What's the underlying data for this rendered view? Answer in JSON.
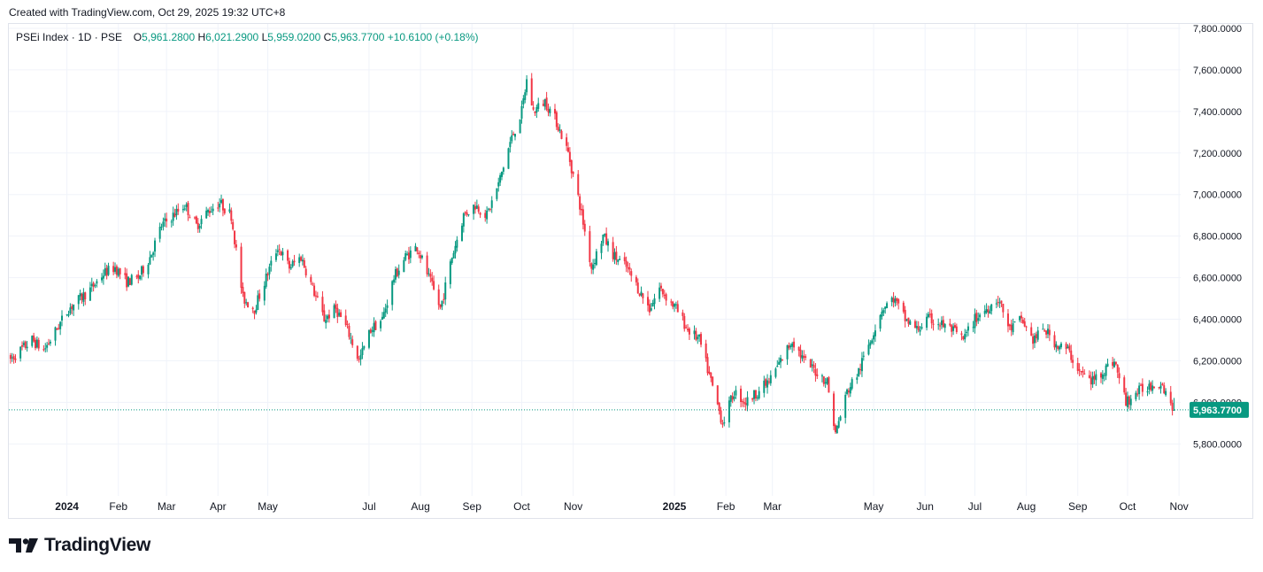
{
  "header": {
    "created_text": "Created with TradingView.com, Oct 29, 2025 19:32 UTC+8"
  },
  "legend": {
    "symbol": "PSEi Index · 1D · PSE",
    "open_label": "O",
    "open": "5,961.2800",
    "high_label": "H",
    "high": "6,021.2900",
    "low_label": "L",
    "low": "5,959.0200",
    "close_label": "C",
    "close": "5,963.7700",
    "change": "+10.6100 (+0.18%)"
  },
  "last_price_label": "5,963.7700",
  "brand": {
    "name": "TradingView"
  },
  "colors": {
    "up": "#089981",
    "down": "#f23645",
    "grid": "#f0f3fa",
    "axis_text": "#131722",
    "last_line": "#089981"
  },
  "chart_data": {
    "type": "candlestick",
    "title": "PSEi Index · 1D · PSE",
    "xlabel": "",
    "ylabel": "",
    "ylim": [
      5550,
      7800
    ],
    "y_ticks": [
      "7,800.0000",
      "7,600.0000",
      "7,400.0000",
      "7,200.0000",
      "7,000.0000",
      "6,800.0000",
      "6,600.0000",
      "6,400.0000",
      "6,200.0000",
      "6,000.0000",
      "5,800.0000"
    ],
    "y_tick_values": [
      7800,
      7600,
      7400,
      7200,
      7000,
      6800,
      6600,
      6400,
      6200,
      6000,
      5800
    ],
    "x_labels": [
      {
        "label": "2024",
        "date": "2024-01",
        "bold": true
      },
      {
        "label": "Feb",
        "date": "2024-02",
        "bold": false
      },
      {
        "label": "Mar",
        "date": "2024-03",
        "bold": false
      },
      {
        "label": "Apr",
        "date": "2024-04",
        "bold": false
      },
      {
        "label": "May",
        "date": "2024-05",
        "bold": false
      },
      {
        "label": "Jul",
        "date": "2024-07",
        "bold": false
      },
      {
        "label": "Aug",
        "date": "2024-08",
        "bold": false
      },
      {
        "label": "Sep",
        "date": "2024-09",
        "bold": false
      },
      {
        "label": "Oct",
        "date": "2024-10",
        "bold": false
      },
      {
        "label": "Nov",
        "date": "2024-11",
        "bold": false
      },
      {
        "label": "2025",
        "date": "2025-01",
        "bold": true
      },
      {
        "label": "Feb",
        "date": "2025-02",
        "bold": false
      },
      {
        "label": "Mar",
        "date": "2025-03",
        "bold": false
      },
      {
        "label": "May",
        "date": "2025-05",
        "bold": false
      },
      {
        "label": "Jun",
        "date": "2025-06",
        "bold": false
      },
      {
        "label": "Jul",
        "date": "2025-07",
        "bold": false
      },
      {
        "label": "Aug",
        "date": "2025-08",
        "bold": false
      },
      {
        "label": "Sep",
        "date": "2025-09",
        "bold": false
      },
      {
        "label": "Oct",
        "date": "2025-10",
        "bold": false
      },
      {
        "label": "Nov",
        "date": "2025-11",
        "bold": false
      }
    ],
    "last_price": 5963.77,
    "close_path": [
      [
        "2023-11-27",
        6200
      ],
      [
        "2023-12-04",
        6250
      ],
      [
        "2023-12-11",
        6300
      ],
      [
        "2023-12-18",
        6250
      ],
      [
        "2023-12-22",
        6300
      ],
      [
        "2024-01-02",
        6450
      ],
      [
        "2024-01-09",
        6500
      ],
      [
        "2024-01-16",
        6550
      ],
      [
        "2024-01-23",
        6620
      ],
      [
        "2024-01-30",
        6650
      ],
      [
        "2024-02-06",
        6580
      ],
      [
        "2024-02-13",
        6600
      ],
      [
        "2024-02-20",
        6700
      ],
      [
        "2024-02-27",
        6850
      ],
      [
        "2024-03-05",
        6900
      ],
      [
        "2024-03-12",
        6950
      ],
      [
        "2024-03-19",
        6850
      ],
      [
        "2024-03-26",
        6920
      ],
      [
        "2024-04-02",
        6960
      ],
      [
        "2024-04-09",
        6900
      ],
      [
        "2024-04-16",
        6500
      ],
      [
        "2024-04-23",
        6450
      ],
      [
        "2024-04-30",
        6600
      ],
      [
        "2024-05-07",
        6750
      ],
      [
        "2024-05-14",
        6650
      ],
      [
        "2024-05-21",
        6700
      ],
      [
        "2024-05-28",
        6550
      ],
      [
        "2024-06-04",
        6400
      ],
      [
        "2024-06-11",
        6450
      ],
      [
        "2024-06-18",
        6350
      ],
      [
        "2024-06-25",
        6200
      ],
      [
        "2024-07-02",
        6350
      ],
      [
        "2024-07-09",
        6400
      ],
      [
        "2024-07-16",
        6600
      ],
      [
        "2024-07-23",
        6700
      ],
      [
        "2024-07-30",
        6750
      ],
      [
        "2024-08-06",
        6600
      ],
      [
        "2024-08-13",
        6450
      ],
      [
        "2024-08-20",
        6700
      ],
      [
        "2024-08-27",
        6900
      ],
      [
        "2024-09-03",
        6950
      ],
      [
        "2024-09-10",
        6900
      ],
      [
        "2024-09-17",
        7050
      ],
      [
        "2024-09-24",
        7250
      ],
      [
        "2024-10-01",
        7400
      ],
      [
        "2024-10-04",
        7550
      ],
      [
        "2024-10-08",
        7400
      ],
      [
        "2024-10-15",
        7450
      ],
      [
        "2024-10-22",
        7350
      ],
      [
        "2024-10-29",
        7200
      ],
      [
        "2024-11-05",
        6950
      ],
      [
        "2024-11-12",
        6650
      ],
      [
        "2024-11-19",
        6800
      ],
      [
        "2024-11-26",
        6700
      ],
      [
        "2024-12-03",
        6650
      ],
      [
        "2024-12-10",
        6550
      ],
      [
        "2024-12-17",
        6450
      ],
      [
        "2024-12-23",
        6550
      ],
      [
        "2025-01-02",
        6450
      ],
      [
        "2025-01-09",
        6350
      ],
      [
        "2025-01-16",
        6300
      ],
      [
        "2025-01-23",
        6100
      ],
      [
        "2025-01-30",
        5900
      ],
      [
        "2025-02-06",
        6050
      ],
      [
        "2025-02-13",
        6000
      ],
      [
        "2025-02-20",
        6050
      ],
      [
        "2025-02-27",
        6100
      ],
      [
        "2025-03-06",
        6200
      ],
      [
        "2025-03-13",
        6300
      ],
      [
        "2025-03-20",
        6200
      ],
      [
        "2025-03-27",
        6150
      ],
      [
        "2025-04-03",
        6100
      ],
      [
        "2025-04-08",
        5850
      ],
      [
        "2025-04-15",
        6050
      ],
      [
        "2025-04-22",
        6150
      ],
      [
        "2025-04-29",
        6300
      ],
      [
        "2025-05-06",
        6450
      ],
      [
        "2025-05-13",
        6500
      ],
      [
        "2025-05-20",
        6400
      ],
      [
        "2025-05-27",
        6350
      ],
      [
        "2025-06-03",
        6400
      ],
      [
        "2025-06-10",
        6380
      ],
      [
        "2025-06-17",
        6350
      ],
      [
        "2025-06-24",
        6300
      ],
      [
        "2025-07-01",
        6400
      ],
      [
        "2025-07-08",
        6450
      ],
      [
        "2025-07-15",
        6500
      ],
      [
        "2025-07-22",
        6350
      ],
      [
        "2025-07-29",
        6400
      ],
      [
        "2025-08-05",
        6300
      ],
      [
        "2025-08-12",
        6350
      ],
      [
        "2025-08-19",
        6280
      ],
      [
        "2025-08-26",
        6250
      ],
      [
        "2025-09-02",
        6150
      ],
      [
        "2025-09-09",
        6100
      ],
      [
        "2025-09-16",
        6150
      ],
      [
        "2025-09-23",
        6200
      ],
      [
        "2025-09-30",
        6000
      ],
      [
        "2025-10-07",
        6050
      ],
      [
        "2025-10-14",
        6080
      ],
      [
        "2025-10-21",
        6100
      ],
      [
        "2025-10-24",
        6050
      ],
      [
        "2025-10-29",
        5963.77
      ]
    ]
  }
}
